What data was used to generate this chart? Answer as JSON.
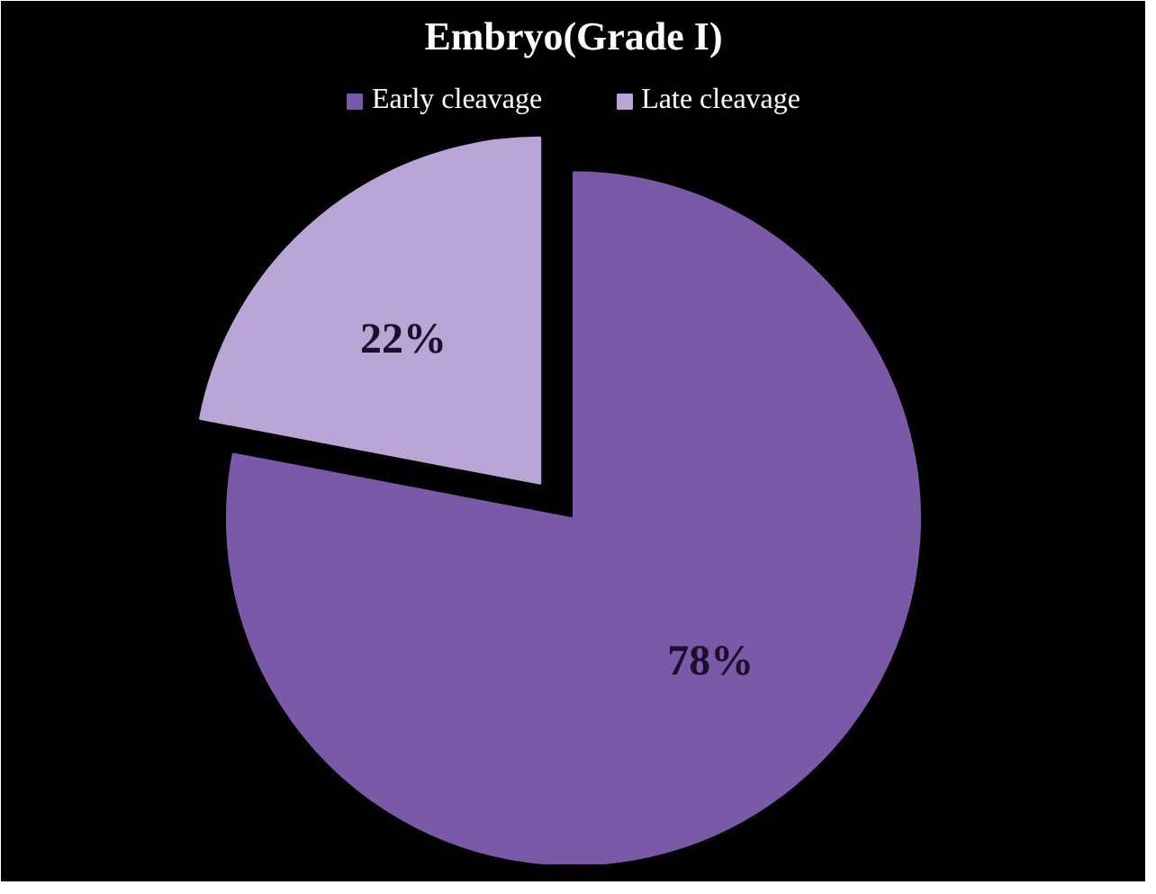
{
  "chart_data": {
    "type": "pie",
    "title": "Embryo(Grade I)",
    "categories": [
      "Early cleavage",
      "Late cleavage"
    ],
    "values": [
      78,
      22
    ],
    "colors": [
      "#7a5aa8",
      "#b9a6d6"
    ],
    "value_labels": [
      "78%",
      "22%"
    ],
    "legend": "top"
  }
}
